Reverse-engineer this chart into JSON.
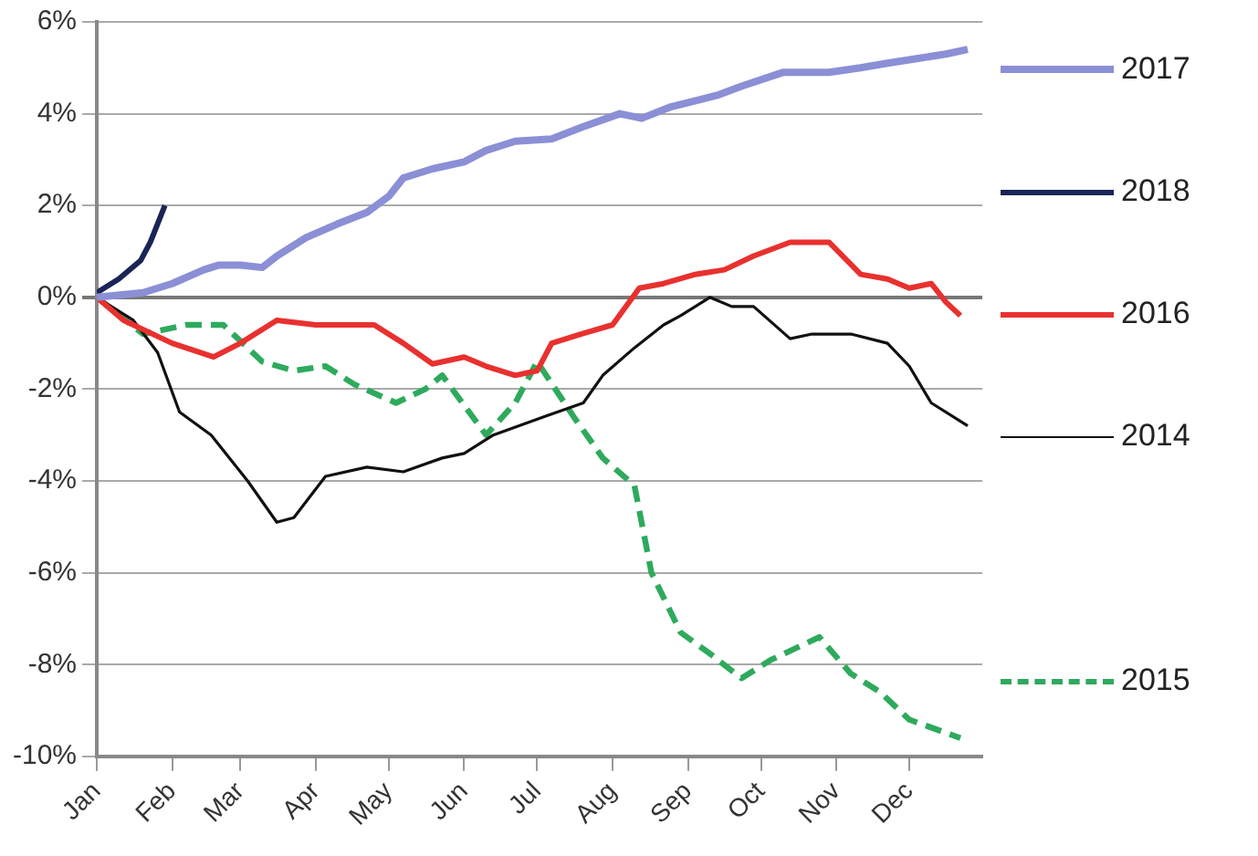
{
  "chart_data": {
    "type": "line",
    "xlim": [
      "--01-01",
      "--12-31"
    ],
    "ylim": [
      -10,
      6
    ],
    "xticks": [
      {
        "value": "--01-01",
        "label": "Jan"
      },
      {
        "value": "--02-01",
        "label": "Feb"
      },
      {
        "value": "--03-01",
        "label": "Mar"
      },
      {
        "value": "--04-01",
        "label": "Apr"
      },
      {
        "value": "--05-01",
        "label": "May"
      },
      {
        "value": "--06-01",
        "label": "Jun"
      },
      {
        "value": "--07-01",
        "label": "Jul"
      },
      {
        "value": "--08-01",
        "label": "Aug"
      },
      {
        "value": "--09-01",
        "label": "Sep"
      },
      {
        "value": "--10-01",
        "label": "Oct"
      },
      {
        "value": "--11-01",
        "label": "Nov"
      },
      {
        "value": "--12-01",
        "label": "Dec"
      }
    ],
    "yticks": [
      {
        "value": 6,
        "label": "6%"
      },
      {
        "value": 4,
        "label": "4%"
      },
      {
        "value": 2,
        "label": "2%"
      },
      {
        "value": 0,
        "label": "0%"
      },
      {
        "value": -2,
        "label": "-2%"
      },
      {
        "value": -4,
        "label": "-4%"
      },
      {
        "value": -6,
        "label": "-6%"
      },
      {
        "value": -8,
        "label": "-8%"
      },
      {
        "value": -10,
        "label": "-10%"
      }
    ],
    "grid": "y",
    "legend": "right",
    "marker": "none",
    "series": [
      {
        "name": "2017",
        "color": "#8b8fd6",
        "line_style": "solid",
        "x": [
          "--01-01",
          "--01-20",
          "--02-01",
          "--02-14",
          "--02-20",
          "--03-01",
          "--03-10",
          "--03-16",
          "--03-28",
          "--04-10",
          "--04-22",
          "--05-01",
          "--05-07",
          "--05-19",
          "--06-01",
          "--06-10",
          "--06-22",
          "--07-07",
          "--07-19",
          "--08-04",
          "--08-13",
          "--08-25",
          "--09-13",
          "--09-23",
          "--10-10",
          "--10-29",
          "--11-11",
          "--11-22",
          "--12-04",
          "--12-16",
          "--12-25"
        ],
        "values": [
          0,
          0.1,
          0.3,
          0.6,
          0.7,
          0.7,
          0.65,
          0.9,
          1.3,
          1.6,
          1.85,
          2.2,
          2.6,
          2.8,
          2.95,
          3.2,
          3.4,
          3.45,
          3.7,
          4.0,
          3.9,
          4.15,
          4.4,
          4.6,
          4.9,
          4.9,
          5.0,
          5.1,
          5.2,
          5.3,
          5.4
        ]
      },
      {
        "name": "2018",
        "color": "#1a2456",
        "line_style": "solid",
        "x": [
          "--01-01",
          "--01-10",
          "--01-19",
          "--01-23",
          "--01-29"
        ],
        "values": [
          0.1,
          0.4,
          0.8,
          1.2,
          2.0
        ]
      },
      {
        "name": "2016",
        "color": "#e8312f",
        "line_style": "solid",
        "x": [
          "--01-01",
          "--01-12",
          "--02-01",
          "--02-18",
          "--03-01",
          "--03-16",
          "--04-01",
          "--04-25",
          "--05-07",
          "--05-19",
          "--06-01",
          "--06-10",
          "--06-22",
          "--07-01",
          "--07-07",
          "--07-19",
          "--08-01",
          "--08-12",
          "--08-22",
          "--09-04",
          "--09-16",
          "--09-28",
          "--10-13",
          "--10-29",
          "--11-11",
          "--11-22",
          "--12-01",
          "--12-10",
          "--12-16",
          "--12-22"
        ],
        "values": [
          0,
          -0.5,
          -1.0,
          -1.3,
          -1.0,
          -0.5,
          -0.6,
          -0.6,
          -1.0,
          -1.45,
          -1.3,
          -1.5,
          -1.7,
          -1.6,
          -1.0,
          -0.8,
          -0.6,
          0.2,
          0.3,
          0.5,
          0.6,
          0.9,
          1.2,
          1.2,
          0.5,
          0.4,
          0.2,
          0.3,
          -0.1,
          -0.4
        ]
      },
      {
        "name": "2014",
        "color": "#111111",
        "line_style": "solid",
        "x": [
          "--01-01",
          "--01-16",
          "--01-26",
          "--02-04",
          "--02-17",
          "--03-04",
          "--03-16",
          "--03-23",
          "--04-05",
          "--04-22",
          "--05-07",
          "--05-23",
          "--06-01",
          "--06-13",
          "--07-04",
          "--07-20",
          "--07-28",
          "--08-10",
          "--08-22",
          "--08-29",
          "--09-10",
          "--09-19",
          "--09-28",
          "--10-13",
          "--10-22",
          "--11-07",
          "--11-22",
          "--12-01",
          "--12-10",
          "--12-25"
        ],
        "values": [
          0,
          -0.5,
          -1.2,
          -2.5,
          -3.0,
          -4.0,
          -4.9,
          -4.8,
          -3.9,
          -3.7,
          -3.8,
          -3.5,
          -3.4,
          -3.0,
          -2.6,
          -2.3,
          -1.7,
          -1.1,
          -0.6,
          -0.4,
          0,
          -0.2,
          -0.2,
          -0.9,
          -0.8,
          -0.8,
          -1.0,
          -1.5,
          -2.3,
          -2.8
        ]
      },
      {
        "name": "2015",
        "color": "#2eaa5c",
        "line_style": "dashed",
        "x": [
          "--01-01",
          "--01-20",
          "--02-07",
          "--02-22",
          "--03-10",
          "--03-23",
          "--04-05",
          "--04-17",
          "--05-04",
          "--05-16",
          "--05-23",
          "--06-10",
          "--06-22",
          "--07-01",
          "--07-16",
          "--07-28",
          "--08-10",
          "--08-17",
          "--08-29",
          "--09-11",
          "--09-23",
          "--10-05",
          "--10-25",
          "--11-07",
          "--11-19",
          "--12-01",
          "--12-22"
        ],
        "values": [
          0,
          -0.8,
          -0.6,
          -0.6,
          -1.4,
          -1.6,
          -1.5,
          -1.9,
          -2.3,
          -2.0,
          -1.7,
          -3.0,
          -2.3,
          -1.4,
          -2.6,
          -3.5,
          -4.1,
          -6.0,
          -7.3,
          -7.8,
          -8.3,
          -7.9,
          -7.4,
          -8.2,
          -8.6,
          -9.2,
          -9.6
        ]
      }
    ]
  }
}
